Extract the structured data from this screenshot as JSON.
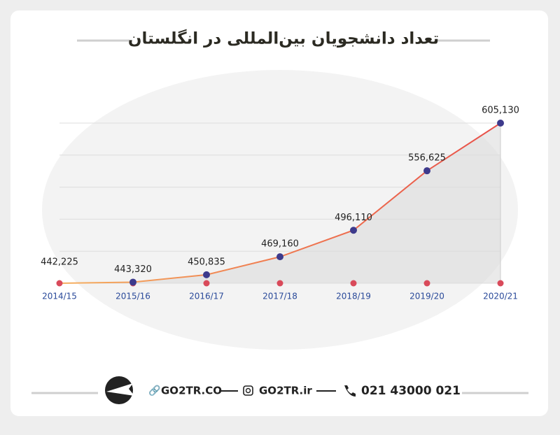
{
  "chart_data": {
    "type": "line",
    "title": "تعداد دانشجویان بین‌المللی در انگلستان",
    "categories": [
      "2014/15",
      "2015/16",
      "2016/17",
      "2017/18",
      "2018/19",
      "2019/20",
      "2020/21"
    ],
    "values": [
      442225,
      443320,
      450835,
      469160,
      496110,
      556625,
      605130
    ],
    "value_labels": [
      "442,225",
      "443,320",
      "450,835",
      "469,160",
      "496,110",
      "556,625",
      "605,130"
    ],
    "color": "#e8504a",
    "point_color": "#3d3a8c",
    "grid": true
  },
  "footer": {
    "website": "GO2TR.CO",
    "instagram": "GO2TR.ir",
    "phone": "021 43000 021"
  }
}
